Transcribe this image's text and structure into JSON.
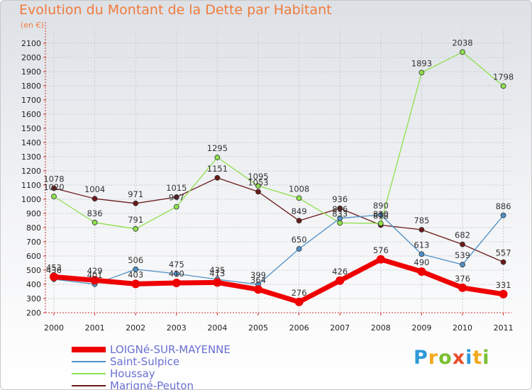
{
  "chart_data": {
    "type": "line",
    "title": "Evolution du Montant de la Dette par Habitant",
    "subtitle": "(en €)",
    "categories": [
      "2000",
      "2001",
      "2002",
      "2003",
      "2004",
      "2005",
      "2006",
      "2007",
      "2008",
      "2009",
      "2010",
      "2011"
    ],
    "ylim": [
      200,
      2100
    ],
    "yticks": [
      200,
      300,
      400,
      500,
      600,
      700,
      800,
      900,
      1000,
      1100,
      1200,
      1300,
      1400,
      1500,
      1600,
      1700,
      1800,
      1900,
      2000,
      2100
    ],
    "grid": true,
    "legend_position": "bottom-left",
    "series": [
      {
        "name": "LOIGNé-SUR-MAYENNE",
        "color": "#ee0000",
        "values": [
          453,
          429,
          403,
          410,
          413,
          364,
          276,
          426,
          576,
          490,
          376,
          331
        ]
      },
      {
        "name": "Saint-Sulpice",
        "color": "#4f90c7",
        "values": [
          436,
          401,
          506,
          475,
          435,
          399,
          650,
          866,
          890,
          613,
          539,
          886
        ]
      },
      {
        "name": "Houssay",
        "color": "#8ee04c",
        "values": [
          1020,
          836,
          791,
          947,
          1295,
          1095,
          1008,
          833,
          830,
          1893,
          2038,
          1798
        ]
      },
      {
        "name": "Marigné-Peuton",
        "color": "#6b1a1a",
        "values": [
          1078,
          1004,
          971,
          1015,
          1151,
          1053,
          849,
          936,
          818,
          785,
          682,
          557
        ]
      }
    ]
  },
  "logo": {
    "text": "Proxiti"
  }
}
